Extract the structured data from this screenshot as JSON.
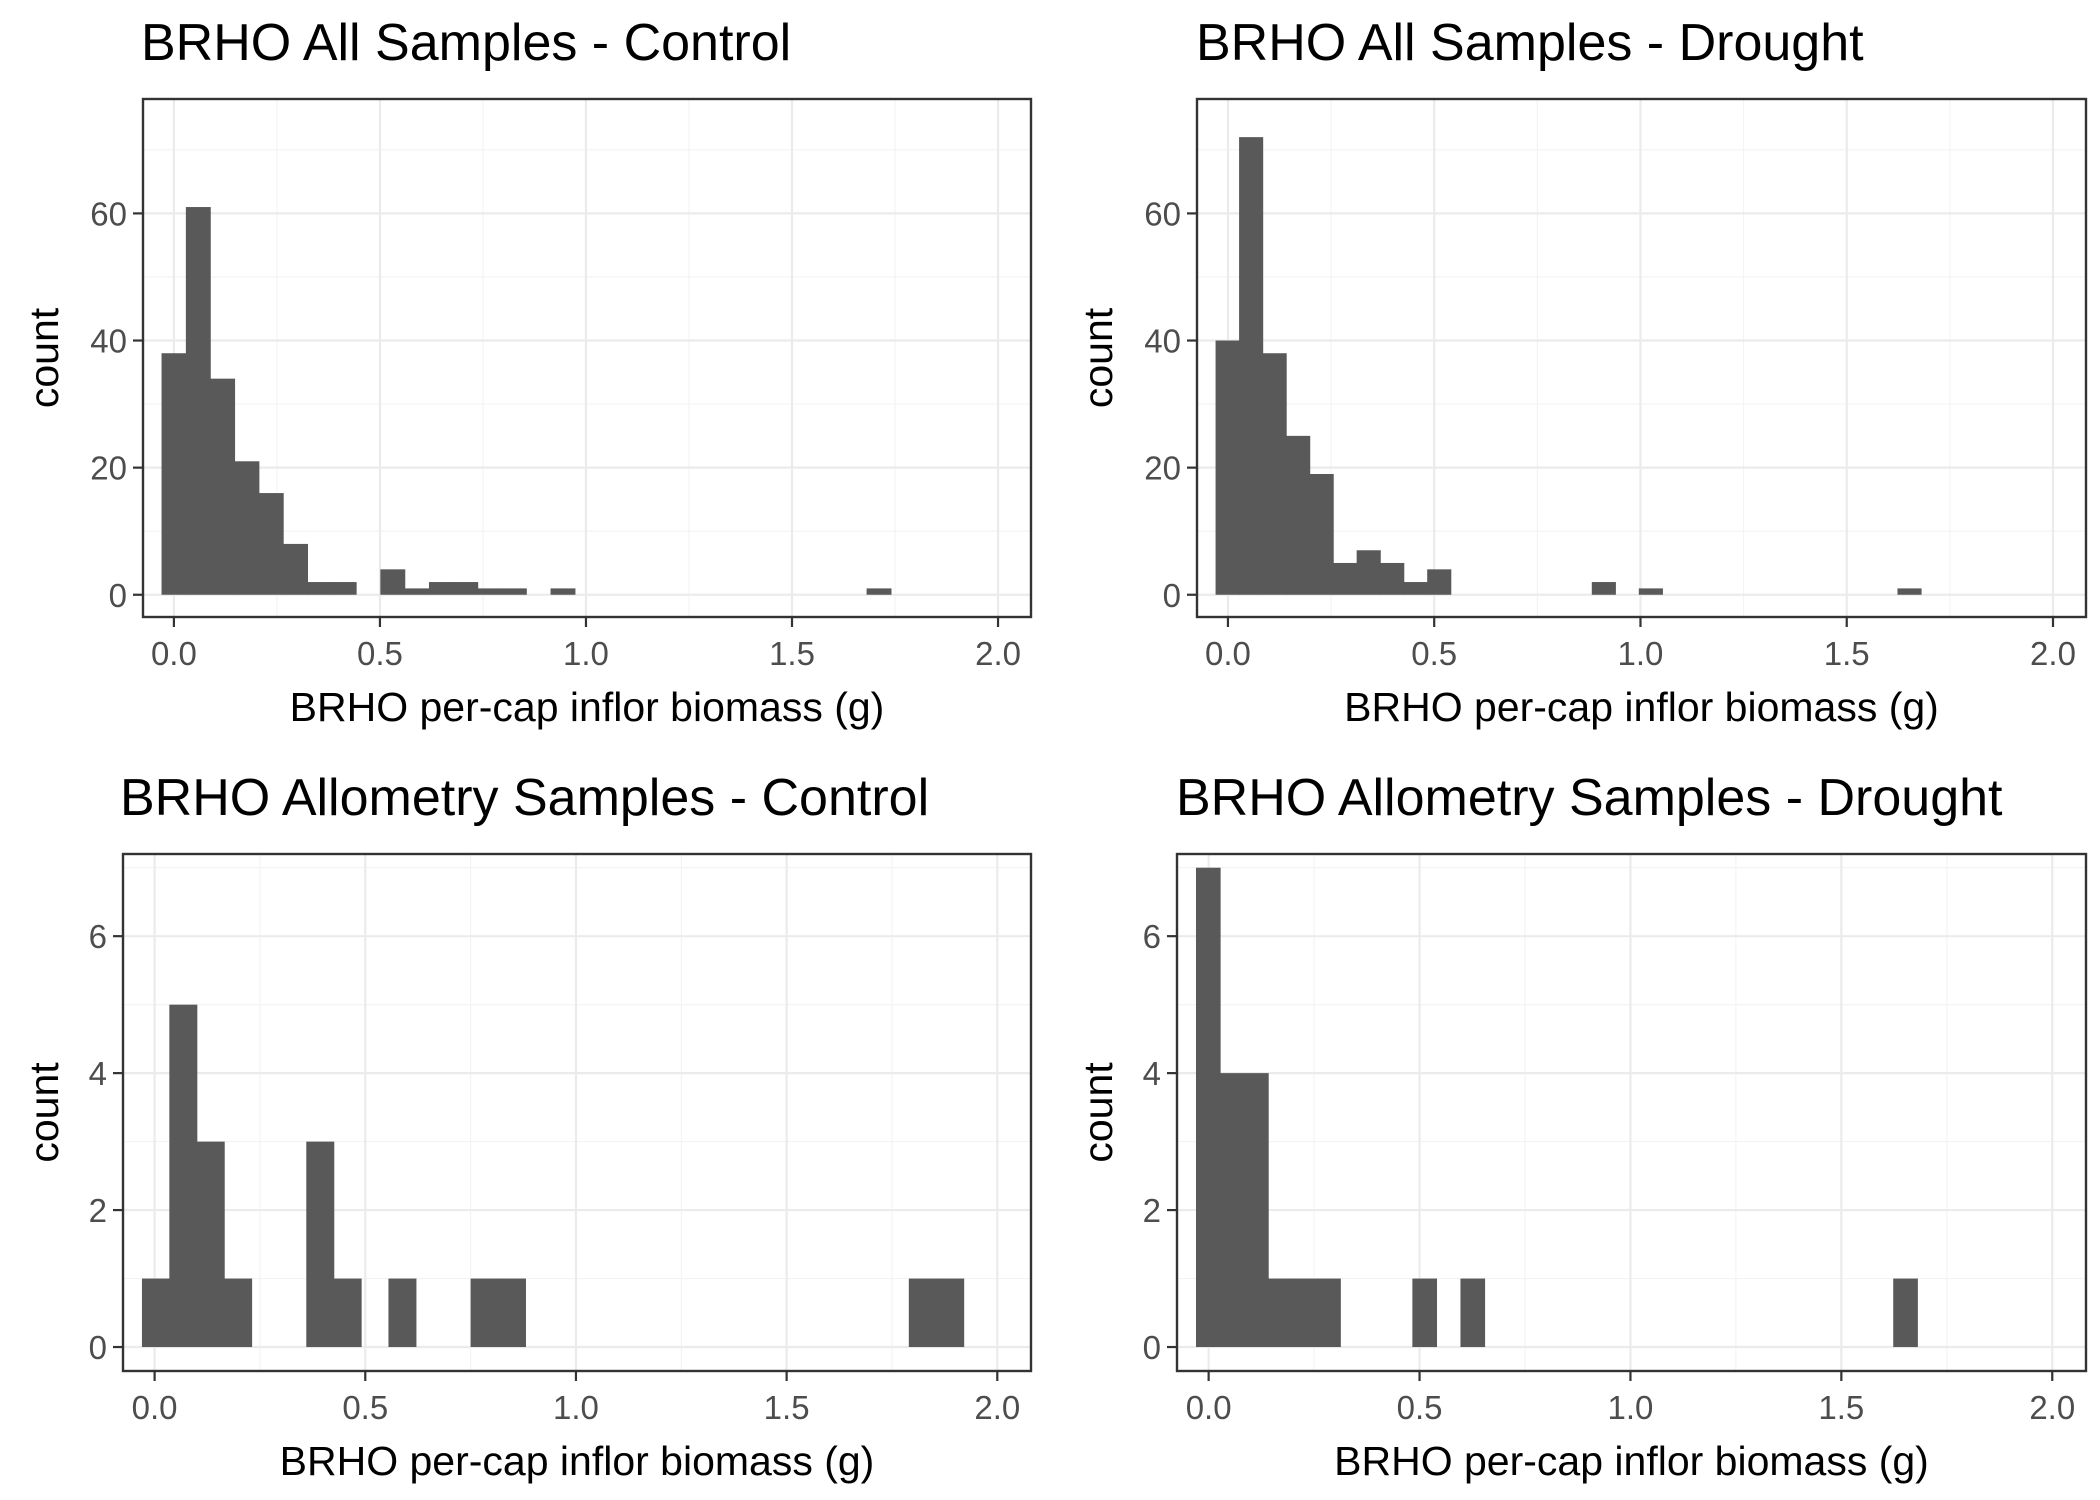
{
  "chart_data": [
    {
      "type": "bar",
      "title": "BRHO All Samples - Control",
      "xlabel": "BRHO per-cap inflor biomass (g)",
      "ylabel": "count",
      "xlim": [
        -0.075,
        2.08
      ],
      "ylim": [
        -3.5,
        78
      ],
      "xticks": [
        "0.0",
        "0.5",
        "1.0",
        "1.5",
        "2.0"
      ],
      "yticks": [
        "0",
        "20",
        "40",
        "60"
      ],
      "bin_width": 0.059,
      "bin_start": -0.03,
      "values": [
        38,
        61,
        34,
        21,
        16,
        8,
        2,
        2,
        0,
        4,
        1,
        2,
        2,
        1,
        1,
        0,
        1,
        0,
        0,
        0,
        0,
        0,
        0,
        0,
        0,
        0,
        0,
        0,
        0,
        1
      ],
      "grid": true
    },
    {
      "type": "bar",
      "title": "BRHO All Samples - Drought",
      "xlabel": "BRHO per-cap inflor biomass (g)",
      "ylabel": "count",
      "xlim": [
        -0.075,
        2.08
      ],
      "ylim": [
        -3.5,
        78
      ],
      "xticks": [
        "0.0",
        "0.5",
        "1.0",
        "1.5",
        "2.0"
      ],
      "yticks": [
        "0",
        "20",
        "40",
        "60"
      ],
      "bin_width": 0.057,
      "bin_start": -0.03,
      "values": [
        40,
        72,
        38,
        25,
        19,
        5,
        7,
        5,
        2,
        4,
        0,
        0,
        0,
        0,
        0,
        0,
        2,
        0,
        1,
        0,
        0,
        0,
        0,
        0,
        0,
        0,
        0,
        0,
        0,
        1
      ],
      "grid": true
    },
    {
      "type": "bar",
      "title": "BRHO Allometry Samples - Control",
      "xlabel": "BRHO per-cap inflor biomass (g)",
      "ylabel": "count",
      "xlim": [
        -0.075,
        2.08
      ],
      "ylim": [
        -0.35,
        7.2
      ],
      "xticks": [
        "0.0",
        "0.5",
        "1.0",
        "1.5",
        "2.0"
      ],
      "yticks": [
        "0",
        "2",
        "4",
        "6"
      ],
      "bin_width": 0.065,
      "bin_start": -0.03,
      "values": [
        1,
        5,
        3,
        1,
        0,
        0,
        3,
        1,
        0,
        1,
        0,
        0,
        1,
        1,
        0,
        0,
        0,
        0,
        0,
        0,
        0,
        0,
        0,
        0,
        0,
        0,
        0,
        0,
        1,
        1
      ],
      "grid": true
    },
    {
      "type": "bar",
      "title": "BRHO Allometry Samples - Drought",
      "xlabel": "BRHO per-cap inflor biomass (g)",
      "ylabel": "count",
      "xlim": [
        -0.075,
        2.08
      ],
      "ylim": [
        -0.35,
        7.2
      ],
      "xticks": [
        "0.0",
        "0.5",
        "1.0",
        "1.5",
        "2.0"
      ],
      "yticks": [
        "0",
        "2",
        "4",
        "6"
      ],
      "bin_width": 0.057,
      "bin_start": -0.03,
      "values": [
        7,
        4,
        4,
        1,
        1,
        1,
        0,
        0,
        0,
        1,
        0,
        1,
        0,
        0,
        0,
        0,
        0,
        0,
        0,
        0,
        0,
        0,
        0,
        0,
        0,
        0,
        0,
        0,
        0,
        1
      ],
      "grid": true
    }
  ]
}
